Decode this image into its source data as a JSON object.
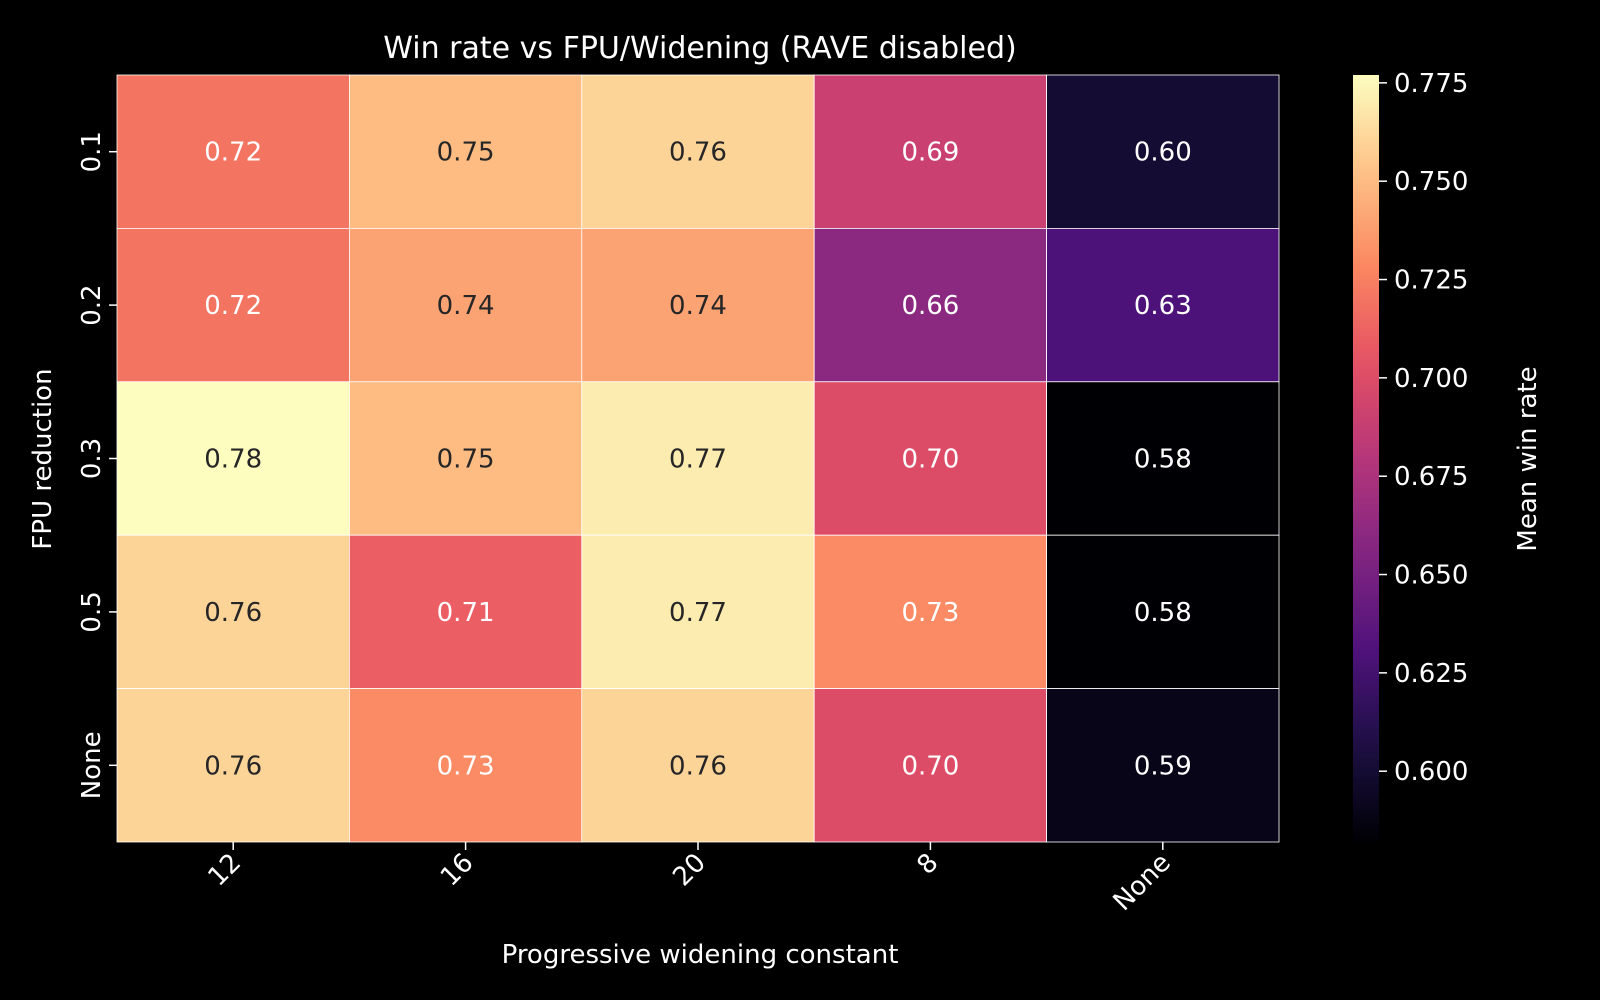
{
  "chart_data": {
    "type": "heatmap",
    "title": "Win rate vs FPU/Widening (RAVE disabled)",
    "xlabel": "Progressive widening constant",
    "ylabel": "FPU reduction",
    "x_categories": [
      "12",
      "16",
      "20",
      "8",
      "None"
    ],
    "y_categories": [
      "0.1",
      "0.2",
      "0.3",
      "0.5",
      "None"
    ],
    "values": [
      [
        0.72,
        0.75,
        0.76,
        0.69,
        0.6
      ],
      [
        0.72,
        0.74,
        0.74,
        0.66,
        0.63
      ],
      [
        0.78,
        0.75,
        0.77,
        0.7,
        0.58
      ],
      [
        0.76,
        0.71,
        0.77,
        0.73,
        0.58
      ],
      [
        0.76,
        0.73,
        0.76,
        0.7,
        0.59
      ]
    ],
    "value_labels": [
      [
        "0.72",
        "0.75",
        "0.76",
        "0.69",
        "0.60"
      ],
      [
        "0.72",
        "0.74",
        "0.74",
        "0.66",
        "0.63"
      ],
      [
        "0.78",
        "0.75",
        "0.77",
        "0.70",
        "0.58"
      ],
      [
        "0.76",
        "0.71",
        "0.77",
        "0.73",
        "0.58"
      ],
      [
        "0.76",
        "0.73",
        "0.76",
        "0.70",
        "0.59"
      ]
    ],
    "colorbar": {
      "label": "Mean win rate",
      "range": [
        0.582,
        0.777
      ],
      "ticks": [
        0.6,
        0.625,
        0.65,
        0.675,
        0.7,
        0.725,
        0.75,
        0.775
      ],
      "tick_labels": [
        "0.600",
        "0.625",
        "0.650",
        "0.675",
        "0.700",
        "0.725",
        "0.750",
        "0.775"
      ],
      "colormap": "magma",
      "colormap_stops": [
        "#000004",
        "#1c1044",
        "#4f127b",
        "#812581",
        "#b5367a",
        "#e55064",
        "#fb8761",
        "#fec287",
        "#fcfdbf"
      ]
    },
    "grid": false,
    "background": "#000000",
    "text_color": "#ffffff"
  }
}
